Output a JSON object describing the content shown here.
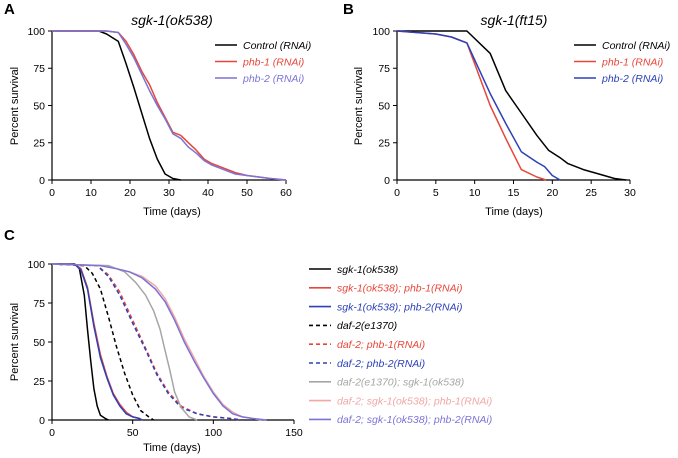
{
  "chart_data": [
    {
      "panel": "A",
      "type": "line",
      "title": "sgk-1(ok538)",
      "xlabel": "Time (days)",
      "ylabel": "Percent survival",
      "xlim": [
        0,
        60
      ],
      "ylim": [
        0,
        100
      ],
      "xticks": [
        0,
        10,
        20,
        30,
        40,
        50,
        60
      ],
      "yticks": [
        0,
        25,
        50,
        75,
        100
      ],
      "legend_placement": "top-right",
      "series": [
        {
          "name": "Control (RNAi)",
          "color": "#000000",
          "dash": "solid",
          "x": [
            0,
            12,
            14,
            17,
            19,
            21,
            23,
            25,
            27,
            29,
            31,
            33
          ],
          "y": [
            100,
            100,
            98,
            93,
            78,
            62,
            45,
            28,
            14,
            4,
            1,
            0
          ]
        },
        {
          "name": "phb-1 (RNAi)",
          "color": "#e8463a",
          "dash": "solid",
          "x": [
            0,
            14,
            17,
            19,
            21,
            23,
            25,
            27,
            29,
            31,
            33,
            35,
            37,
            39,
            41,
            43,
            45,
            47,
            50,
            53,
            56,
            60
          ],
          "y": [
            100,
            100,
            99,
            93,
            84,
            73,
            64,
            52,
            42,
            32,
            30,
            25,
            20,
            14,
            11,
            9,
            7,
            5,
            3,
            2,
            1,
            0
          ]
        },
        {
          "name": "phb-2 (RNAi)",
          "color": "#7b74d6",
          "dash": "solid",
          "x": [
            0,
            14,
            17,
            19,
            21,
            23,
            25,
            27,
            29,
            31,
            33,
            35,
            37,
            39,
            41,
            43,
            45,
            47,
            50,
            53,
            56,
            60
          ],
          "y": [
            100,
            100,
            99,
            91,
            82,
            71,
            60,
            50,
            41,
            31,
            28,
            22,
            18,
            13,
            10,
            8,
            6,
            4,
            3,
            2,
            1,
            0
          ]
        }
      ]
    },
    {
      "panel": "B",
      "type": "line",
      "title": "sgk-1(ft15)",
      "xlabel": "Time (days)",
      "ylabel": "Percent survival",
      "xlim": [
        0,
        30
      ],
      "ylim": [
        0,
        100
      ],
      "xticks": [
        0,
        5,
        10,
        15,
        20,
        25,
        30
      ],
      "yticks": [
        0,
        25,
        50,
        75,
        100
      ],
      "legend_placement": "top-right",
      "series": [
        {
          "name": "Control (RNAi)",
          "color": "#000000",
          "dash": "solid",
          "x": [
            0,
            9,
            12,
            14,
            16,
            18,
            19.5,
            21,
            22,
            24,
            26,
            28,
            29.5
          ],
          "y": [
            100,
            100,
            85,
            60,
            45,
            30,
            20,
            15,
            11,
            7,
            4,
            1,
            0
          ]
        },
        {
          "name": "phb-1 (RNAi)",
          "color": "#e8463a",
          "dash": "solid",
          "x": [
            0,
            5,
            7,
            9,
            12,
            14,
            16,
            18,
            19.2
          ],
          "y": [
            100,
            98,
            96,
            92,
            50,
            28,
            7,
            2,
            0
          ]
        },
        {
          "name": "phb-2 (RNAi)",
          "color": "#2d40b8",
          "dash": "solid",
          "x": [
            0,
            5,
            7,
            9,
            12,
            14,
            16,
            18,
            19,
            20,
            21
          ],
          "y": [
            100,
            98,
            96,
            92,
            58,
            38,
            19,
            12,
            9,
            3,
            0
          ]
        }
      ]
    },
    {
      "panel": "C",
      "type": "line",
      "title": "",
      "xlabel": "Time (days)",
      "ylabel": "Percent survival",
      "xlim": [
        0,
        150
      ],
      "ylim": [
        0,
        100
      ],
      "xticks": [
        0,
        50,
        100,
        150
      ],
      "yticks": [
        0,
        25,
        50,
        75,
        100
      ],
      "legend_placement": "right",
      "series": [
        {
          "name": "sgk-1(ok538)",
          "color": "#000000",
          "dash": "solid",
          "x": [
            0,
            14,
            17,
            20,
            22,
            24,
            26,
            28,
            30,
            33,
            35
          ],
          "y": [
            100,
            100,
            97,
            80,
            58,
            38,
            20,
            9,
            3,
            1,
            0
          ]
        },
        {
          "name": "sgk-1(ok538); phb-1(RNAi)",
          "color": "#e8463a",
          "dash": "solid",
          "x": [
            0,
            14,
            18,
            22,
            26,
            30,
            34,
            38,
            42,
            46,
            50,
            54,
            56
          ],
          "y": [
            100,
            100,
            97,
            85,
            62,
            42,
            28,
            17,
            10,
            5,
            2,
            1,
            0
          ]
        },
        {
          "name": "sgk-1(ok538); phb-2(RNAi)",
          "color": "#2d40b8",
          "dash": "solid",
          "x": [
            0,
            14,
            18,
            22,
            26,
            30,
            34,
            38,
            42,
            46,
            50,
            54,
            56
          ],
          "y": [
            100,
            100,
            96,
            84,
            60,
            40,
            27,
            16,
            9,
            4,
            2,
            1,
            0
          ]
        },
        {
          "name": "daf-2(e1370)",
          "color": "#000000",
          "dash": "dashed",
          "x": [
            0,
            20,
            25,
            30,
            35,
            40,
            45,
            50,
            55,
            60,
            63
          ],
          "y": [
            100,
            99,
            94,
            84,
            66,
            47,
            30,
            16,
            6,
            2,
            0
          ]
        },
        {
          "name": "daf-2; phb-1(RNAi)",
          "color": "#e8463a",
          "dash": "dashed",
          "x": [
            0,
            28,
            35,
            42,
            50,
            58,
            65,
            72,
            80,
            90,
            100,
            110,
            118
          ],
          "y": [
            100,
            99,
            93,
            82,
            64,
            46,
            30,
            18,
            9,
            4,
            2,
            1,
            0
          ]
        },
        {
          "name": "daf-2; phb-2(RNAi)",
          "color": "#2d40b8",
          "dash": "dashed",
          "x": [
            0,
            28,
            35,
            42,
            50,
            58,
            65,
            72,
            80,
            90,
            100,
            110,
            118
          ],
          "y": [
            100,
            99,
            92,
            80,
            62,
            45,
            29,
            17,
            8,
            4,
            2,
            1,
            0
          ]
        },
        {
          "name": "daf-2(e1370); sgk-1(ok538)",
          "color": "#a6a6a6",
          "dash": "solid",
          "x": [
            0,
            35,
            45,
            52,
            58,
            63,
            67,
            70,
            73,
            76,
            80,
            85,
            90
          ],
          "y": [
            100,
            99,
            95,
            88,
            80,
            70,
            58,
            45,
            32,
            18,
            8,
            2,
            0
          ]
        },
        {
          "name": "daf-2; sgk-1(ok538); phb-1(RNAi)",
          "color": "#f2a6a6",
          "dash": "solid",
          "x": [
            0,
            30,
            40,
            48,
            56,
            64,
            70,
            76,
            82,
            88,
            94,
            100,
            106,
            112,
            118,
            124,
            130
          ],
          "y": [
            100,
            99,
            97,
            95,
            92,
            86,
            78,
            66,
            52,
            40,
            28,
            18,
            10,
            5,
            2,
            1,
            0
          ]
        },
        {
          "name": "daf-2; sgk-1(ok538); phb-2(RNAi)",
          "color": "#7b74d6",
          "dash": "solid",
          "x": [
            0,
            30,
            40,
            48,
            56,
            64,
            70,
            76,
            82,
            88,
            94,
            100,
            106,
            112,
            118,
            124,
            133
          ],
          "y": [
            100,
            99,
            97,
            95,
            91,
            84,
            76,
            64,
            50,
            38,
            27,
            17,
            9,
            4,
            2,
            1,
            0
          ]
        }
      ]
    }
  ]
}
